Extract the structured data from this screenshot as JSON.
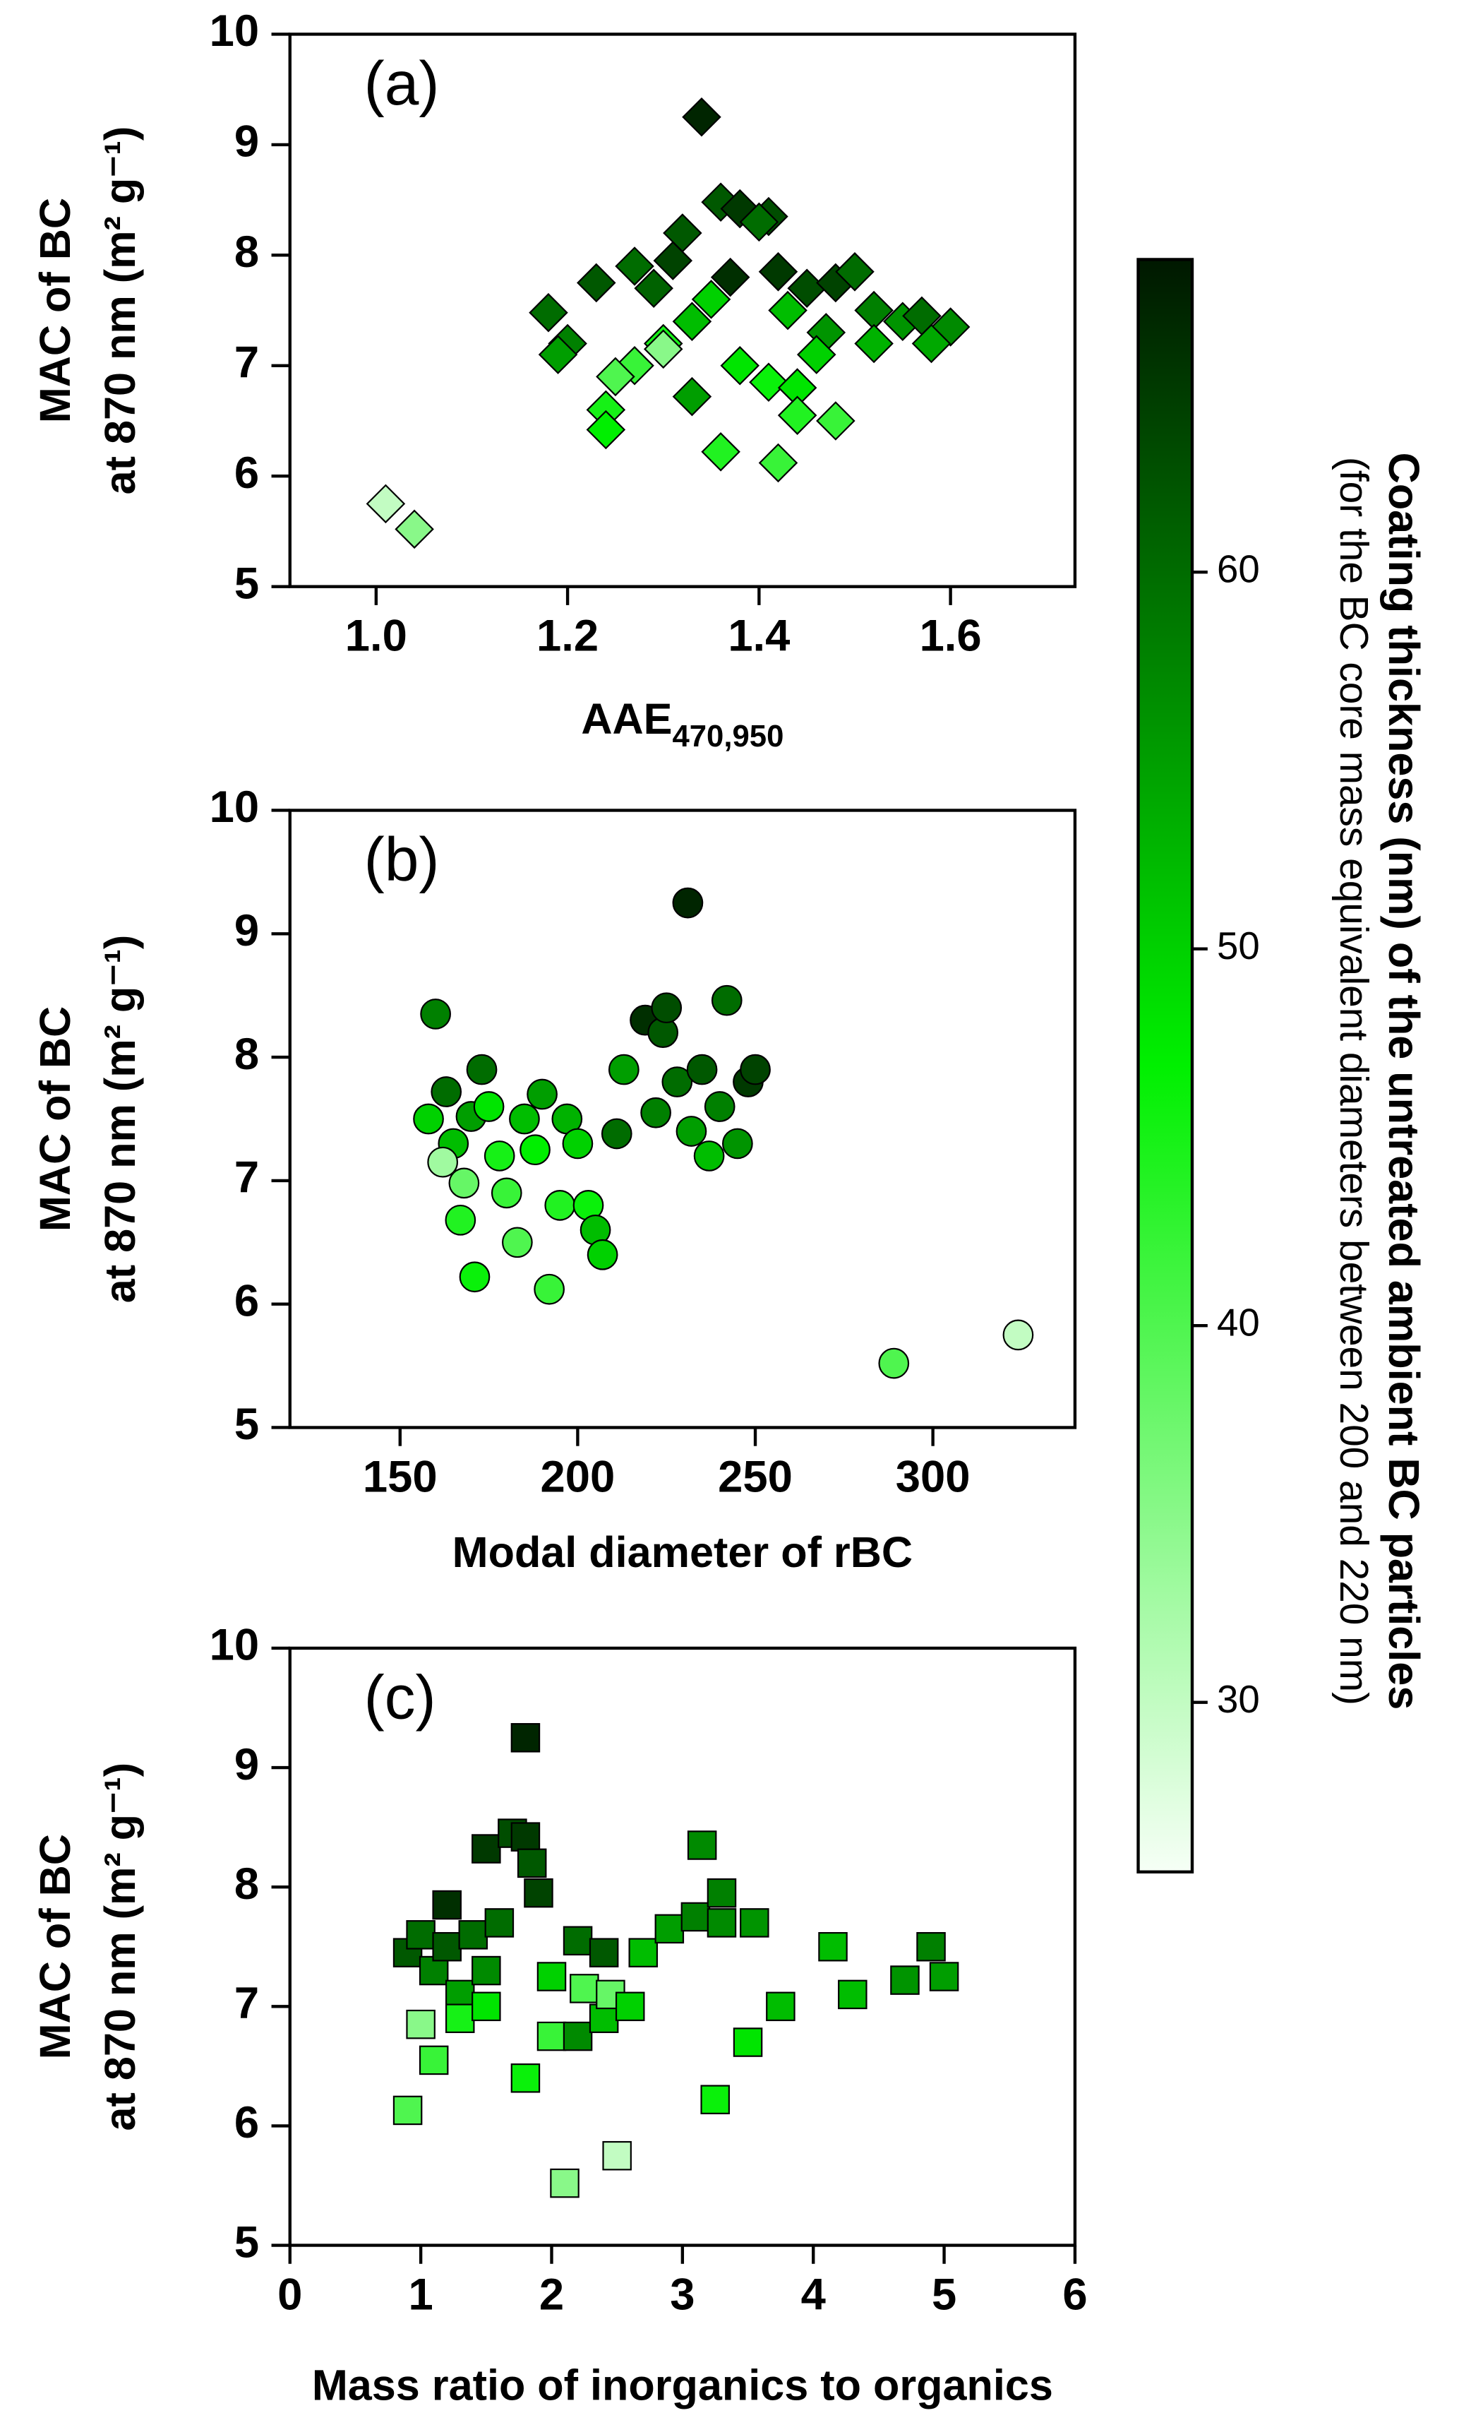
{
  "chart_data": [
    {
      "type": "scatter",
      "panel_label": "(a)",
      "xlabel": "AAE",
      "xlabel_sub": "470,950",
      "ylabel": "MAC of BC",
      "ylabel2": "at 870 nm (m² g⁻¹)",
      "marker": "diamond",
      "xlim": [
        0.91,
        1.73
      ],
      "ylim": [
        5,
        10
      ],
      "xticks": [
        {
          "value": 1,
          "label": "1.0"
        },
        1.2,
        1.4,
        1.6
      ],
      "yticks": [
        5,
        6,
        7,
        8,
        9,
        10
      ],
      "x": [
        1.34,
        1.36,
        1.38,
        1.41,
        1.32,
        1.4,
        1.18,
        1.23,
        1.2,
        1.19,
        1.27,
        1.29,
        1.31,
        1.37,
        1.42,
        1.45,
        1.48,
        1.5,
        1.52,
        1.55,
        1.57,
        1.6,
        1.58,
        1.47,
        1.43,
        1.35,
        1.33,
        1.3,
        1.27,
        1.25,
        1.24,
        1.24,
        1.33,
        1.38,
        1.41,
        1.44,
        1.44,
        1.48,
        1.36,
        1.42,
        1.3,
        1.01,
        1.04,
        1.46,
        1.52
      ],
      "y": [
        9.25,
        8.48,
        8.42,
        8.35,
        8.2,
        8.3,
        7.48,
        7.75,
        7.2,
        7.1,
        7.9,
        7.7,
        7.95,
        7.8,
        7.85,
        7.7,
        7.75,
        7.85,
        7.5,
        7.4,
        7.45,
        7.35,
        7.2,
        7.3,
        7.5,
        7.6,
        7.4,
        7.2,
        7.0,
        6.9,
        6.6,
        6.42,
        6.72,
        7.0,
        6.85,
        6.8,
        6.55,
        6.5,
        6.22,
        6.12,
        7.15,
        5.75,
        5.52,
        7.1,
        7.2
      ],
      "c": [
        67,
        62,
        65,
        63,
        62,
        60,
        60,
        62,
        58,
        55,
        60,
        61,
        64,
        66,
        65,
        63,
        64,
        60,
        58,
        56,
        60,
        57,
        54,
        56,
        52,
        50,
        52,
        45,
        42,
        40,
        45,
        47,
        55,
        48,
        46,
        48,
        44,
        42,
        44,
        42,
        35,
        30,
        35,
        50,
        53
      ]
    },
    {
      "type": "scatter",
      "panel_label": "(b)",
      "xlabel": "Modal diameter of rBC",
      "ylabel": "MAC of BC",
      "ylabel2": "at 870 nm (m² g⁻¹)",
      "marker": "circle",
      "xlim": [
        119,
        340
      ],
      "ylim": [
        5,
        10
      ],
      "xticks": [
        150,
        200,
        250,
        300
      ],
      "yticks": [
        5,
        6,
        7,
        8,
        9,
        10
      ],
      "x": [
        160,
        163,
        158,
        165,
        162,
        168,
        167,
        171,
        170,
        173,
        175,
        178,
        180,
        183,
        185,
        188,
        190,
        192,
        195,
        197,
        200,
        203,
        205,
        207,
        211,
        213,
        219,
        222,
        224,
        225,
        228,
        231,
        232,
        235,
        237,
        240,
        242,
        245,
        248,
        250,
        289,
        324
      ],
      "y": [
        8.35,
        7.72,
        7.5,
        7.3,
        7.15,
        6.98,
        6.68,
        6.22,
        7.52,
        7.9,
        7.6,
        7.2,
        6.9,
        6.5,
        7.5,
        7.25,
        7.7,
        6.12,
        6.8,
        7.5,
        7.3,
        6.8,
        6.6,
        6.4,
        7.38,
        7.9,
        8.3,
        7.55,
        8.2,
        8.4,
        7.8,
        9.25,
        7.4,
        7.9,
        7.2,
        7.6,
        8.46,
        7.3,
        7.8,
        7.9,
        5.52,
        5.75
      ],
      "c": [
        58,
        60,
        50,
        52,
        33,
        38,
        44,
        46,
        55,
        60,
        48,
        45,
        42,
        40,
        52,
        47,
        55,
        42,
        44,
        53,
        50,
        46,
        52,
        50,
        60,
        55,
        66,
        58,
        62,
        63,
        60,
        67,
        55,
        62,
        52,
        58,
        60,
        56,
        65,
        64,
        40,
        30
      ]
    },
    {
      "type": "scatter",
      "panel_label": "(c)",
      "xlabel": "Mass ratio of inorganics to organics",
      "ylabel": "MAC of BC",
      "ylabel2": "at 870 nm (m² g⁻¹)",
      "marker": "square",
      "xlim": [
        0,
        6
      ],
      "ylim": [
        5,
        10
      ],
      "xticks": [
        0,
        1,
        2,
        3,
        4,
        5,
        6
      ],
      "yticks": [
        5,
        6,
        7,
        8,
        9,
        10
      ],
      "x": [
        0.9,
        1.0,
        1.1,
        1.2,
        1.2,
        1.3,
        1.4,
        1.5,
        1.5,
        1.7,
        1.8,
        1.8,
        1.85,
        1.9,
        1.6,
        1.0,
        1.1,
        0.9,
        1.3,
        1.5,
        1.8,
        2.0,
        2.0,
        2.1,
        2.2,
        2.25,
        2.4,
        2.5,
        2.45,
        2.6,
        2.7,
        2.9,
        3.1,
        3.15,
        3.3,
        3.25,
        3.3,
        3.5,
        3.55,
        3.75,
        4.15,
        4.3,
        4.7,
        4.9,
        5.0,
        2.2,
        2.4
      ],
      "y": [
        7.45,
        7.6,
        7.3,
        7.85,
        7.5,
        7.1,
        7.6,
        8.32,
        7.3,
        8.45,
        8.42,
        9.25,
        8.2,
        7.95,
        7.7,
        6.85,
        6.55,
        6.13,
        6.9,
        7.0,
        6.4,
        6.75,
        7.25,
        5.52,
        6.75,
        7.15,
        6.9,
        5.75,
        7.1,
        7.0,
        7.45,
        7.65,
        7.75,
        8.35,
        7.95,
        6.22,
        7.7,
        6.7,
        7.7,
        7.0,
        7.5,
        7.1,
        7.22,
        7.5,
        7.25,
        7.55,
        7.45
      ],
      "c": [
        62,
        60,
        58,
        66,
        62,
        55,
        60,
        65,
        57,
        63,
        65,
        67,
        62,
        64,
        60,
        35,
        42,
        40,
        45,
        48,
        46,
        42,
        50,
        35,
        57,
        40,
        52,
        30,
        38,
        50,
        52,
        55,
        58,
        57,
        58,
        46,
        57,
        48,
        56,
        52,
        52,
        52,
        56,
        58,
        55,
        60,
        62
      ]
    },
    {
      "type": "colorbar",
      "label": "Coating thickness (nm) of the untreated ambient BC particles",
      "sublabel": "(for the BC core mass equivalent diameters between 200 and 220 nm)",
      "lim": [
        25.5,
        68.3
      ],
      "ticks": [
        30,
        40,
        50,
        60
      ],
      "colors": [
        "#f6fff6",
        "#00f000",
        "#001800"
      ]
    }
  ]
}
